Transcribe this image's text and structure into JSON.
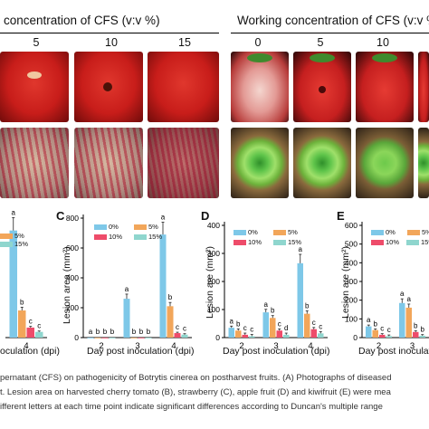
{
  "header_left": "concentration of CFS (v:v %)",
  "header_right": "Working concentration of CFS (v:v %)",
  "left_cols": [
    "5",
    "10",
    "15"
  ],
  "right_cols": [
    "0",
    "5",
    "10"
  ],
  "colors": {
    "s0": "#7ec8e8",
    "s5": "#f2a65a",
    "s10": "#ee4c6a",
    "s15": "#8fd6ce"
  },
  "legend": [
    "0%",
    "5%",
    "10%",
    "15%"
  ],
  "panels": {
    "B": {
      "label": "",
      "ylabel": "",
      "xlabel": "oculation (dpi)",
      "xticks": [
        "4"
      ],
      "leg_visible": [
        "5%",
        "15%"
      ]
    },
    "C": {
      "label": "C",
      "ylabel": "Lesion area (mm²)",
      "xlabel": "Day post inoculation (dpi)",
      "xticks": [
        "2",
        "3",
        "4"
      ],
      "yticks": [
        "0",
        "200",
        "400",
        "600",
        "800"
      ]
    },
    "D": {
      "label": "D",
      "ylabel": "Lesion are (mm²)",
      "xlabel": "Day post inoculation (dpi)",
      "xticks": [
        "2",
        "3",
        "4"
      ],
      "yticks": [
        "0",
        "100",
        "200",
        "300",
        "400"
      ]
    },
    "E": {
      "label": "E",
      "ylabel": "Lesion are (mm²)",
      "xlabel": "Day post inoculation",
      "xticks": [
        "2",
        "3"
      ],
      "yticks": [
        "0",
        "100",
        "200",
        "300",
        "400",
        "500",
        "600"
      ]
    }
  },
  "chart_data": [
    {
      "type": "bar",
      "categories": [
        "4"
      ],
      "series": [
        {
          "name": "0%",
          "values": [
            750
          ]
        },
        {
          "name": "5%",
          "values": [
            190
          ]
        },
        {
          "name": "10%",
          "values": [
            70
          ]
        },
        {
          "name": "15%",
          "values": [
            40
          ]
        }
      ],
      "letters": [
        [
          "a",
          "b",
          "c",
          "c"
        ]
      ],
      "ylim": [
        0,
        900
      ]
    },
    {
      "type": "bar",
      "title": "",
      "xlabel": "Day post inoculation (dpi)",
      "ylabel": "Lesion area (mm²)",
      "categories": [
        "2",
        "3",
        "4"
      ],
      "series": [
        {
          "name": "0%",
          "values": [
            0,
            260,
            690
          ]
        },
        {
          "name": "5%",
          "values": [
            0,
            0,
            210
          ]
        },
        {
          "name": "10%",
          "values": [
            0,
            0,
            30
          ]
        },
        {
          "name": "15%",
          "values": [
            0,
            0,
            20
          ]
        }
      ],
      "letters": [
        [
          "a",
          "b",
          "b",
          "b"
        ],
        [
          "a",
          "b",
          "b",
          "b"
        ],
        [
          "a",
          "b",
          "c",
          "c"
        ]
      ],
      "ylim": [
        0,
        800
      ]
    },
    {
      "type": "bar",
      "title": "",
      "xlabel": "Day post inoculation (dpi)",
      "ylabel": "Lesion are (mm²)",
      "categories": [
        "2",
        "3",
        "4"
      ],
      "series": [
        {
          "name": "0%",
          "values": [
            35,
            90,
            265
          ]
        },
        {
          "name": "5%",
          "values": [
            25,
            70,
            85
          ]
        },
        {
          "name": "10%",
          "values": [
            10,
            25,
            30
          ]
        },
        {
          "name": "15%",
          "values": [
            5,
            10,
            15
          ]
        }
      ],
      "letters": [
        [
          "a",
          "b",
          "c",
          "c"
        ],
        [
          "a",
          "b",
          "c",
          "d"
        ],
        [
          "a",
          "b",
          "c",
          "c"
        ]
      ],
      "ylim": [
        0,
        400
      ]
    },
    {
      "type": "bar",
      "title": "",
      "xlabel": "Day post inoculation",
      "ylabel": "Lesion are (mm²)",
      "categories": [
        "2",
        "3"
      ],
      "series": [
        {
          "name": "0%",
          "values": [
            60,
            185
          ]
        },
        {
          "name": "5%",
          "values": [
            40,
            160
          ]
        },
        {
          "name": "10%",
          "values": [
            15,
            30
          ]
        },
        {
          "name": "15%",
          "values": [
            8,
            10
          ]
        }
      ],
      "letters": [
        [
          "a",
          "b",
          "c",
          "c"
        ],
        [
          "a",
          "a",
          "b",
          "b"
        ]
      ],
      "ylim": [
        0,
        600
      ]
    }
  ],
  "caption": [
    "pernatant (CFS) on pathogenicity of Botrytis cinerea on postharvest fruits. (A) Photographs of diseased",
    "t. Lesion area on harvested cherry tomato (B), strawberry (C), apple fruit (D) and kiwifruit (E) were mea",
    "ifferent letters at each time point indicate significant differences according to Duncan's multiple range"
  ]
}
